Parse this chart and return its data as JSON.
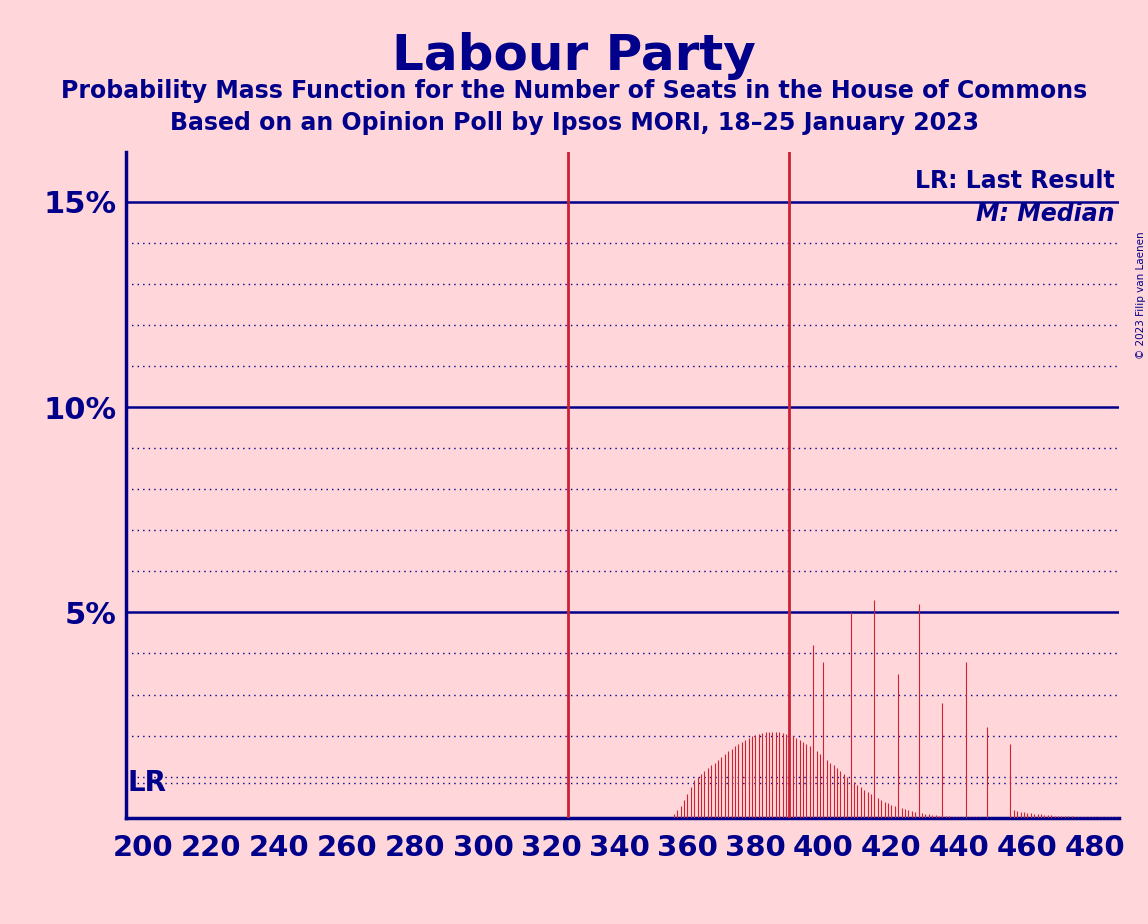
{
  "title": "Labour Party",
  "subtitle1": "Probability Mass Function for the Number of Seats in the House of Commons",
  "subtitle2": "Based on an Opinion Poll by Ipsos MORI, 18–25 January 2023",
  "copyright": "© 2023 Filip van Laenen",
  "background_color": "#FFD6D9",
  "title_color": "#00008B",
  "subtitle_color": "#00008B",
  "bar_color": "#CC2233",
  "axis_color": "#00008B",
  "grid_color": "#00008B",
  "lr_line_color": "#CC2233",
  "median_line_color": "#CC2233",
  "lr_seats": 325,
  "median_seats": 390,
  "xlim": [
    195,
    487
  ],
  "ylim": [
    0,
    0.162
  ],
  "xticks": [
    200,
    220,
    240,
    260,
    280,
    300,
    320,
    340,
    360,
    380,
    400,
    420,
    440,
    460,
    480
  ],
  "lr_prob_level": 0.0085,
  "legend_lr": "LR: Last Result",
  "legend_m": "M: Median"
}
